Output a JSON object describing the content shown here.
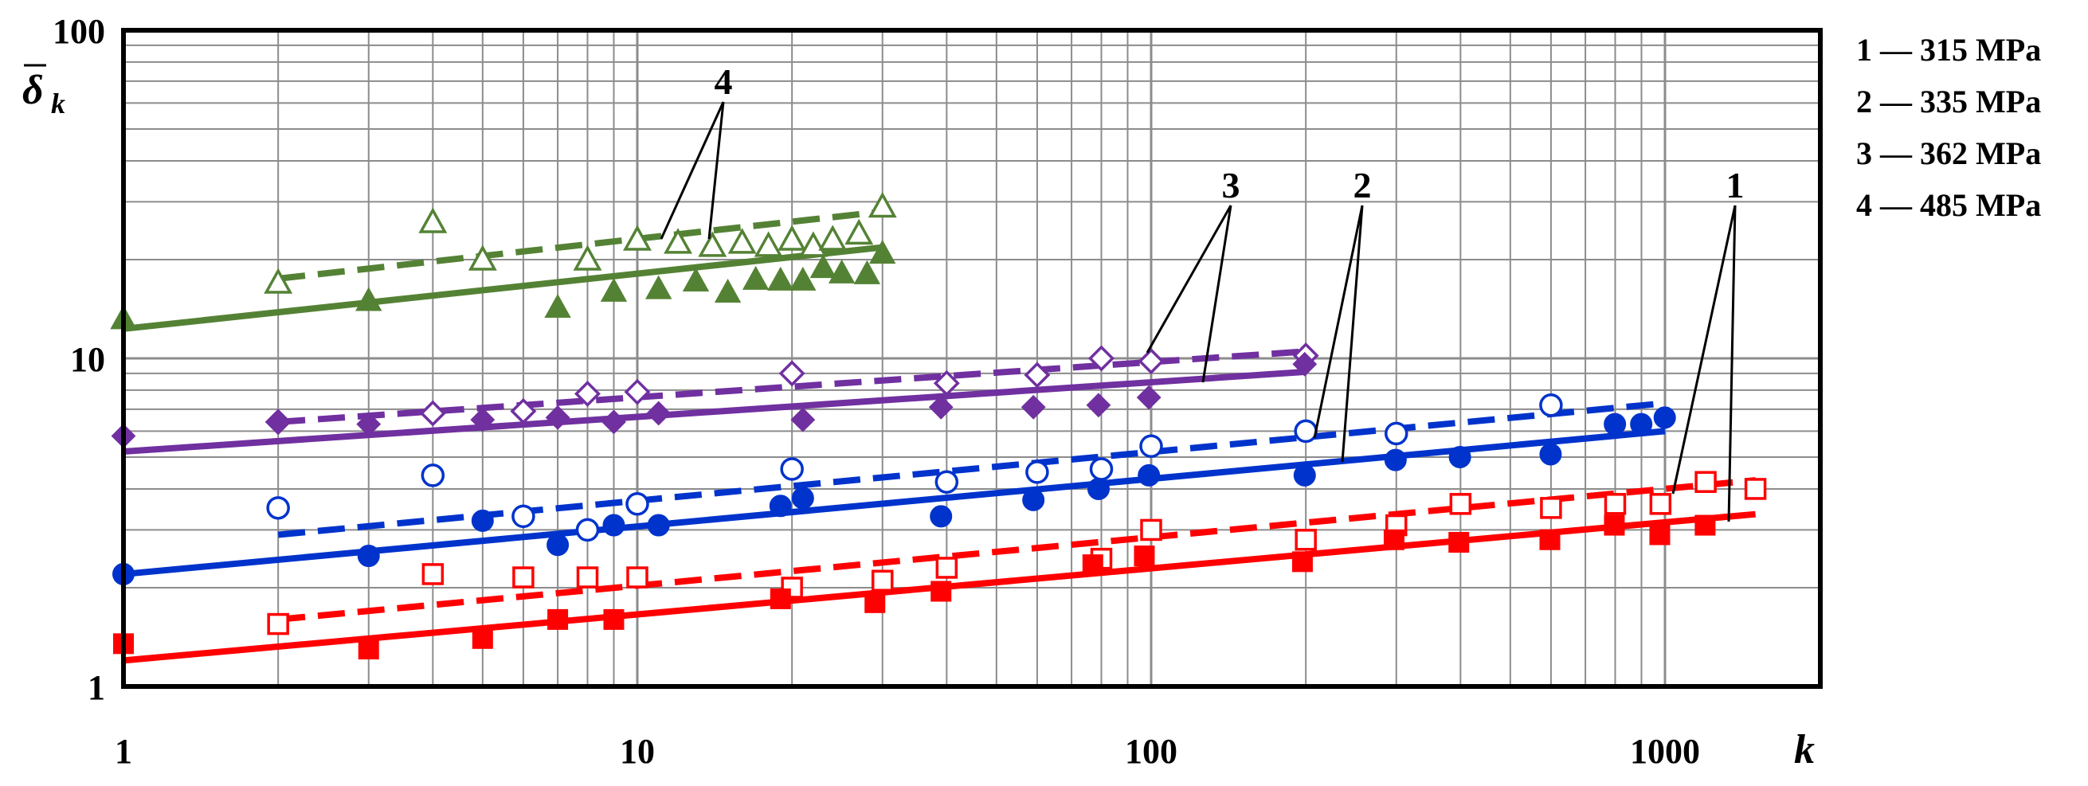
{
  "chart_data": {
    "type": "scatter",
    "xscale": "log",
    "yscale": "log",
    "xlim": [
      1,
      2000
    ],
    "ylim": [
      1,
      100
    ],
    "grid": true,
    "xlabel": "k",
    "ylabel_main": "δ",
    "ylabel_sub": "k",
    "x_ticks": [
      "1",
      "10",
      "100",
      "1000"
    ],
    "y_ticks": [
      "1",
      "10",
      "100"
    ],
    "legend_position": "right",
    "legend": [
      "1 — 315 MPa",
      "2 — 335 MPa",
      "3 — 362 MPa",
      "4 — 485 MPa"
    ],
    "annotations": [
      "1",
      "2",
      "3",
      "4"
    ],
    "series": [
      {
        "label": "1",
        "color": "#ff0000",
        "marker": "square",
        "solid_points": [
          [
            1,
            1.35
          ],
          [
            3,
            1.3
          ],
          [
            5,
            1.4
          ],
          [
            7,
            1.6
          ],
          [
            9,
            1.6
          ],
          [
            19,
            1.85
          ],
          [
            29,
            1.8
          ],
          [
            39,
            1.95
          ],
          [
            77,
            2.35
          ],
          [
            97,
            2.5
          ],
          [
            197,
            2.4
          ],
          [
            297,
            2.8
          ],
          [
            397,
            2.75
          ],
          [
            597,
            2.8
          ],
          [
            797,
            3.1
          ],
          [
            977,
            2.9
          ],
          [
            1197,
            3.1
          ]
        ],
        "hollow_points": [
          [
            2,
            1.55
          ],
          [
            4,
            2.2
          ],
          [
            6,
            2.15
          ],
          [
            8,
            2.15
          ],
          [
            10,
            2.15
          ],
          [
            20,
            2.0
          ],
          [
            30,
            2.1
          ],
          [
            40,
            2.3
          ],
          [
            80,
            2.45
          ],
          [
            100,
            3.0
          ],
          [
            200,
            2.8
          ],
          [
            300,
            3.1
          ],
          [
            400,
            3.6
          ],
          [
            600,
            3.5
          ],
          [
            800,
            3.6
          ],
          [
            980,
            3.6
          ],
          [
            1200,
            4.2
          ],
          [
            1500,
            4.0
          ]
        ],
        "solid_fit": [
          [
            1,
            1.2
          ],
          [
            1500,
            3.35
          ]
        ],
        "dashed_fit": [
          [
            2,
            1.6
          ],
          [
            1500,
            4.25
          ]
        ]
      },
      {
        "label": "2",
        "color": "#0033cc",
        "marker": "circle",
        "solid_points": [
          [
            1,
            2.2
          ],
          [
            3,
            2.5
          ],
          [
            5,
            3.2
          ],
          [
            7,
            2.7
          ],
          [
            9,
            3.1
          ],
          [
            11,
            3.1
          ],
          [
            19,
            3.55
          ],
          [
            21,
            3.75
          ],
          [
            39,
            3.3
          ],
          [
            59,
            3.7
          ],
          [
            79,
            4.0
          ],
          [
            99,
            4.4
          ],
          [
            199,
            4.4
          ],
          [
            299,
            4.9
          ],
          [
            399,
            5.0
          ],
          [
            599,
            5.1
          ],
          [
            799,
            6.3
          ],
          [
            899,
            6.3
          ],
          [
            999,
            6.6
          ]
        ],
        "hollow_points": [
          [
            2,
            3.5
          ],
          [
            4,
            4.4
          ],
          [
            6,
            3.3
          ],
          [
            8,
            3.0
          ],
          [
            10,
            3.6
          ],
          [
            20,
            4.6
          ],
          [
            40,
            4.2
          ],
          [
            60,
            4.5
          ],
          [
            80,
            4.6
          ],
          [
            100,
            5.4
          ],
          [
            200,
            6.0
          ],
          [
            300,
            5.9
          ],
          [
            600,
            7.2
          ]
        ],
        "solid_fit": [
          [
            1,
            2.2
          ],
          [
            1000,
            6.0
          ]
        ],
        "dashed_fit": [
          [
            2,
            2.9
          ],
          [
            1000,
            7.3
          ]
        ]
      },
      {
        "label": "3",
        "color": "#7030a0",
        "marker": "diamond",
        "solid_points": [
          [
            1,
            5.8
          ],
          [
            2,
            6.4
          ],
          [
            3,
            6.3
          ],
          [
            5,
            6.5
          ],
          [
            7,
            6.6
          ],
          [
            9,
            6.4
          ],
          [
            11,
            6.8
          ],
          [
            21,
            6.5
          ],
          [
            39,
            7.1
          ],
          [
            59,
            7.1
          ],
          [
            79,
            7.2
          ],
          [
            99,
            7.6
          ],
          [
            199,
            9.6
          ]
        ],
        "hollow_points": [
          [
            2,
            6.4
          ],
          [
            4,
            6.8
          ],
          [
            6,
            6.9
          ],
          [
            8,
            7.8
          ],
          [
            10,
            7.9
          ],
          [
            20,
            9.0
          ],
          [
            40,
            8.4
          ],
          [
            60,
            8.9
          ],
          [
            80,
            10.0
          ],
          [
            100,
            9.8
          ],
          [
            200,
            10.2
          ]
        ],
        "solid_fit": [
          [
            1,
            5.2
          ],
          [
            200,
            9.1
          ]
        ],
        "dashed_fit": [
          [
            2,
            6.4
          ],
          [
            200,
            10.5
          ]
        ]
      },
      {
        "label": "4",
        "color": "#548235",
        "marker": "triangle",
        "solid_points": [
          [
            1,
            13.2
          ],
          [
            3,
            15.0
          ],
          [
            7,
            14.3
          ],
          [
            9,
            16.0
          ],
          [
            11,
            16.3
          ],
          [
            13,
            17.2
          ],
          [
            15,
            15.9
          ],
          [
            17,
            17.4
          ],
          [
            19,
            17.3
          ],
          [
            21,
            17.3
          ],
          [
            23,
            18.9
          ],
          [
            25,
            18.2
          ],
          [
            28,
            18.1
          ],
          [
            30,
            20.9
          ]
        ],
        "hollow_points": [
          [
            2,
            17.0
          ],
          [
            4,
            26.0
          ],
          [
            5,
            20.0
          ],
          [
            8,
            20.0
          ],
          [
            10,
            23.0
          ],
          [
            12,
            22.5
          ],
          [
            14,
            22.0
          ],
          [
            16,
            22.5
          ],
          [
            18,
            22.0
          ],
          [
            20,
            23.0
          ],
          [
            22,
            22.0
          ],
          [
            24,
            23.0
          ],
          [
            27,
            24.0
          ],
          [
            30,
            29.0
          ]
        ],
        "solid_fit": [
          [
            1,
            12.3
          ],
          [
            30,
            21.8
          ]
        ],
        "dashed_fit": [
          [
            2,
            17.5
          ],
          [
            30,
            28.0
          ]
        ]
      }
    ]
  }
}
